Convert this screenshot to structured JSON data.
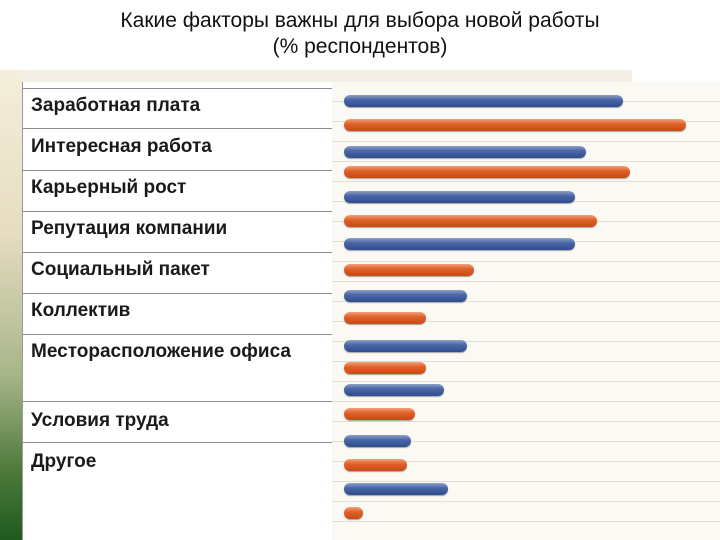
{
  "title_lines": [
    "Какие факторы важны для выбора новой работы",
    "(% респондентов)"
  ],
  "colors": {
    "series_0": "#3d5a99",
    "series_1": "#d9581e"
  },
  "chart_data": {
    "type": "bar",
    "orientation": "horizontal",
    "title": "Какие факторы важны для выбора новой работы (% респондентов)",
    "categories": [
      "Заработная плата",
      "Интересная работа",
      "Карьерный рост",
      "Репутация компании",
      "Социальный пакет",
      "Коллектив",
      "Месторасположение офиса",
      "Условия труда",
      "Другое"
    ],
    "series": [
      {
        "values": [
          75,
          65,
          62,
          62,
          33,
          33,
          27,
          18,
          28
        ]
      },
      {
        "values": [
          92,
          77,
          68,
          35,
          22,
          22,
          19,
          17,
          5
        ]
      }
    ],
    "xlim": [
      0,
      100
    ],
    "legend": "none",
    "grid": true
  }
}
